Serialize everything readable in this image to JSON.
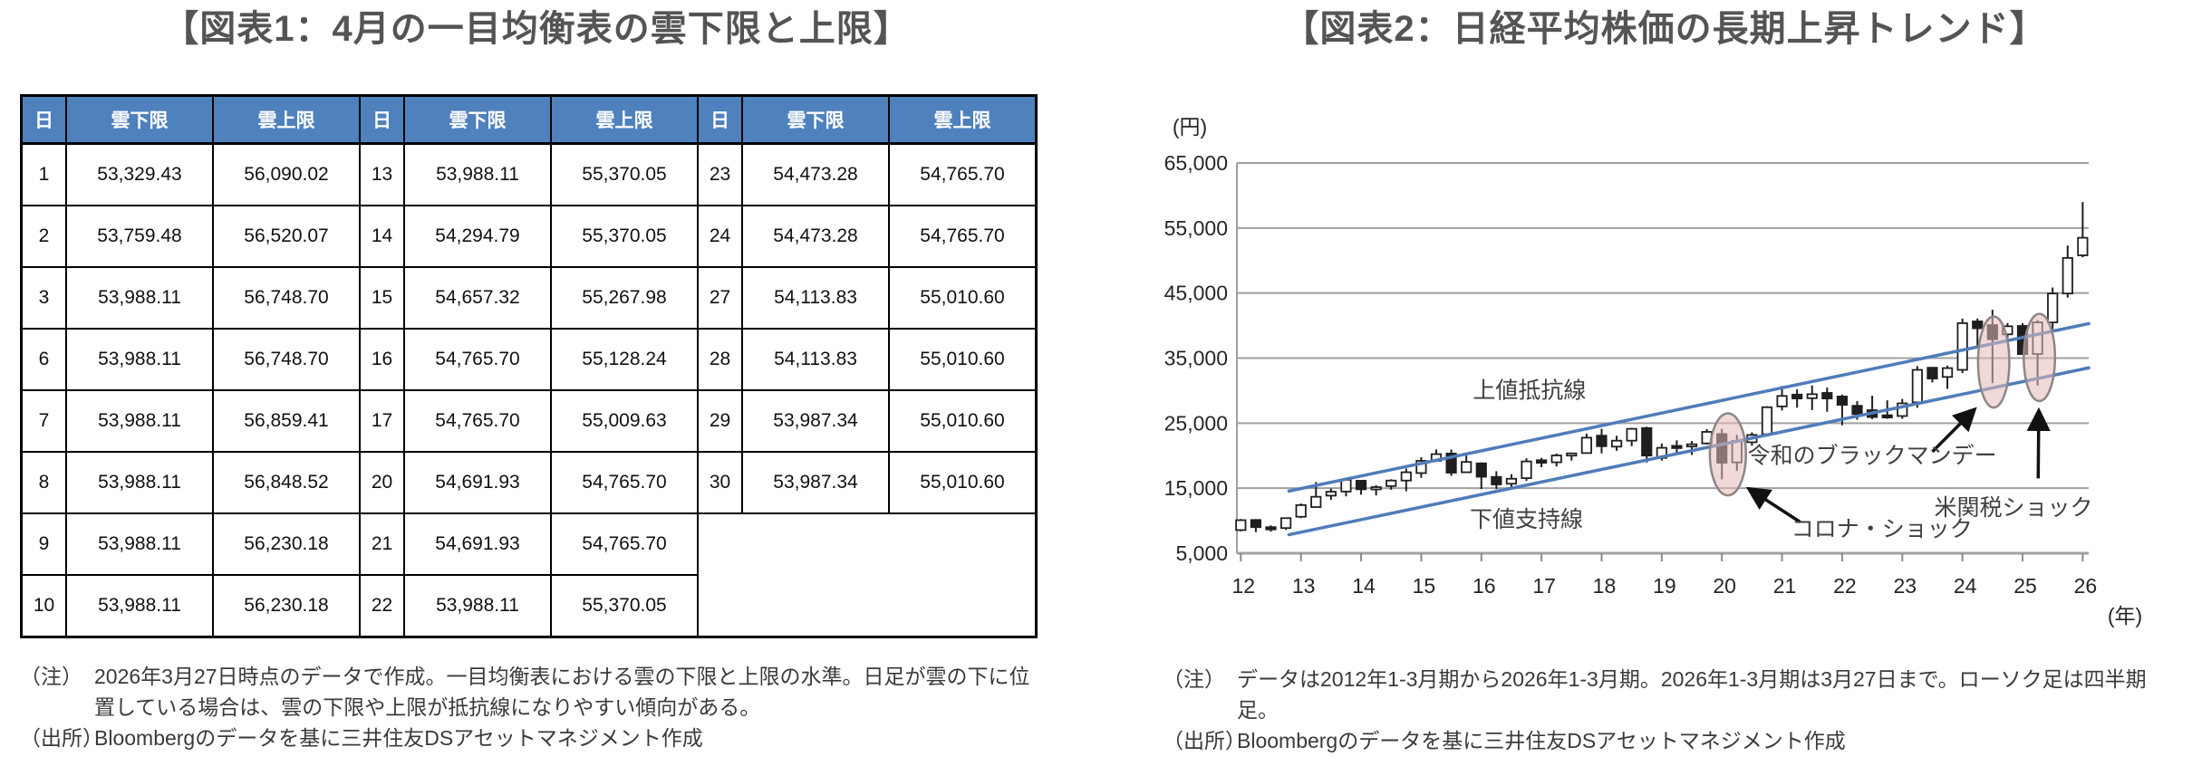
{
  "figure1": {
    "title": "【図表1：4月の一目均衡表の雲下限と上限】",
    "table": {
      "header": [
        "日",
        "雲下限",
        "雲上限",
        "日",
        "雲下限",
        "雲上限",
        "日",
        "雲下限",
        "雲上限"
      ],
      "rows": [
        [
          "1",
          "53,329.43",
          "56,090.02",
          "13",
          "53,988.11",
          "55,370.05",
          "23",
          "54,473.28",
          "54,765.70"
        ],
        [
          "2",
          "53,759.48",
          "56,520.07",
          "14",
          "54,294.79",
          "55,370.05",
          "24",
          "54,473.28",
          "54,765.70"
        ],
        [
          "3",
          "53,988.11",
          "56,748.70",
          "15",
          "54,657.32",
          "55,267.98",
          "27",
          "54,113.83",
          "55,010.60"
        ],
        [
          "6",
          "53,988.11",
          "56,748.70",
          "16",
          "54,765.70",
          "55,128.24",
          "28",
          "54,113.83",
          "55,010.60"
        ],
        [
          "7",
          "53,988.11",
          "56,859.41",
          "17",
          "54,765.70",
          "55,009.63",
          "29",
          "53,987.34",
          "55,010.60"
        ],
        [
          "8",
          "53,988.11",
          "56,848.52",
          "20",
          "54,691.93",
          "54,765.70",
          "30",
          "53,987.34",
          "55,010.60"
        ],
        [
          "9",
          "53,988.11",
          "56,230.18",
          "21",
          "54,691.93",
          "54,765.70",
          "",
          "",
          ""
        ],
        [
          "10",
          "53,988.11",
          "56,230.18",
          "22",
          "53,988.11",
          "55,370.05",
          "",
          "",
          ""
        ]
      ]
    },
    "notes": {
      "note_label": "（注）",
      "note_text": "2026年3月27日時点のデータで作成。一目均衡表における雲の下限と上限の水準。日足が雲の下に位置している場合は、雲の下限や上限が抵抗線になりやすい傾向がある。",
      "source_label": "（出所）",
      "source_text": "Bloombergのデータを基に三井住友DSアセットマネジメント作成"
    }
  },
  "figure2": {
    "title": "【図表2：日経平均株価の長期上昇トレンド】",
    "notes": {
      "note_label": "（注）",
      "note_text": "データは2012年1-3月期から2026年1-3月期。2026年1-3月期は3月27日まで。ローソク足は四半期足。",
      "source_label": "（出所）",
      "source_text": "Bloombergのデータを基に三井住友DSアセットマネジメント作成"
    }
  },
  "chart_data": {
    "type": "candlestick",
    "title": "日経平均株価の長期上昇トレンド",
    "period": "quarterly",
    "y_axis_unit": "(円)",
    "x_axis_unit": "(年)",
    "ylim": [
      5000,
      65000
    ],
    "y_tick_step": 10000,
    "xlim": [
      2011.935,
      2026.1
    ],
    "x_tick_year_start": 2012,
    "x_tick_labels": [
      "12",
      "13",
      "14",
      "15",
      "16",
      "17",
      "18",
      "19",
      "20",
      "21",
      "22",
      "23",
      "24",
      "25",
      "26"
    ],
    "grid": true,
    "colors": {
      "trend_line": "#4f7cba",
      "up_candle": "#ffffff",
      "down_candle": "#1f1f1f",
      "candle_stroke": "#1f1f1f",
      "highlight_fill": "#e4b9b8",
      "highlight_stroke": "#8f8686",
      "grid": "#a0a0a0",
      "axis": "#8a8a8a",
      "text": "#262626",
      "annotation": "#404040",
      "arrow": "#111111"
    },
    "ohlc": [
      [
        2012,
        1,
        8560,
        10255,
        8360,
        10084
      ],
      [
        2012,
        2,
        10110,
        10255,
        8240,
        9007
      ],
      [
        2012,
        3,
        9007,
        9288,
        8328,
        8870
      ],
      [
        2012,
        4,
        8870,
        10433,
        8596,
        10395
      ],
      [
        2013,
        1,
        10604,
        12650,
        10398,
        12398
      ],
      [
        2013,
        2,
        12100,
        15943,
        12100,
        13677
      ],
      [
        2013,
        3,
        13852,
        14953,
        13188,
        14456
      ],
      [
        2013,
        4,
        14484,
        16320,
        13748,
        16291
      ],
      [
        2014,
        1,
        16147,
        16164,
        13995,
        14828
      ],
      [
        2014,
        2,
        14841,
        15442,
        13885,
        15162
      ],
      [
        2014,
        3,
        15326,
        16374,
        14753,
        16174
      ],
      [
        2014,
        4,
        16173,
        18030,
        14529,
        17451
      ],
      [
        2015,
        1,
        17325,
        19778,
        16592,
        19207
      ],
      [
        2015,
        2,
        19207,
        20952,
        19034,
        20236
      ],
      [
        2015,
        3,
        20329,
        20946,
        16901,
        17388
      ],
      [
        2015,
        4,
        17449,
        20012,
        17380,
        19034
      ],
      [
        2016,
        1,
        18818,
        18951,
        14865,
        16759
      ],
      [
        2016,
        2,
        16729,
        17613,
        14864,
        15576
      ],
      [
        2016,
        3,
        15682,
        17156,
        14955,
        16450
      ],
      [
        2016,
        4,
        16544,
        19592,
        16111,
        19114
      ],
      [
        2017,
        1,
        19298,
        19668,
        18224,
        18909
      ],
      [
        2017,
        2,
        18983,
        20318,
        18335,
        20033
      ],
      [
        2017,
        3,
        20055,
        20481,
        19240,
        20356
      ],
      [
        2017,
        4,
        20400,
        23382,
        20318,
        22765
      ],
      [
        2018,
        1,
        23074,
        24129,
        20347,
        21454
      ],
      [
        2018,
        2,
        21388,
        23050,
        20751,
        22305
      ],
      [
        2018,
        3,
        22304,
        24286,
        21462,
        24120
      ],
      [
        2018,
        4,
        24245,
        24448,
        18948,
        20015
      ],
      [
        2019,
        1,
        19655,
        21860,
        19241,
        21206
      ],
      [
        2019,
        2,
        21509,
        22362,
        20289,
        21276
      ],
      [
        2019,
        3,
        21729,
        22255,
        20110,
        21756
      ],
      [
        2019,
        4,
        21885,
        24091,
        21710,
        23657
      ],
      [
        2020,
        1,
        23320,
        24115,
        16358,
        18917
      ],
      [
        2020,
        2,
        18974,
        23178,
        17646,
        22288
      ],
      [
        2020,
        3,
        22062,
        23580,
        21530,
        23185
      ],
      [
        2020,
        4,
        23295,
        27602,
        22948,
        27444
      ],
      [
        2021,
        1,
        27575,
        30715,
        26954,
        29179
      ],
      [
        2021,
        2,
        29388,
        30208,
        27385,
        28792
      ],
      [
        2021,
        3,
        28836,
        30796,
        27013,
        29453
      ],
      [
        2021,
        4,
        29647,
        30467,
        26749,
        28792
      ],
      [
        2022,
        1,
        29098,
        29388,
        24681,
        27821
      ],
      [
        2022,
        2,
        27665,
        28389,
        25520,
        26393
      ],
      [
        2022,
        3,
        26993,
        29223,
        25621,
        25937
      ],
      [
        2022,
        4,
        26215,
        28502,
        25661,
        26095
      ],
      [
        2023,
        1,
        26094,
        28734,
        25662,
        28041
      ],
      [
        2023,
        2,
        28203,
        33772,
        27359,
        33189
      ],
      [
        2023,
        3,
        33517,
        33634,
        31250,
        31858
      ],
      [
        2023,
        4,
        32101,
        33853,
        30269,
        33464
      ],
      [
        2024,
        1,
        33193,
        41087,
        32693,
        40369
      ],
      [
        2024,
        2,
        40646,
        41088,
        36733,
        39583
      ],
      [
        2024,
        3,
        40074,
        42426,
        31156,
        37920
      ],
      [
        2024,
        4,
        38651,
        40398,
        37651,
        39895
      ],
      [
        2025,
        1,
        39945,
        40368,
        35613,
        35618
      ],
      [
        2025,
        2,
        35624,
        40852,
        30793,
        40487
      ],
      [
        2025,
        3,
        40487,
        45853,
        39434,
        44932
      ],
      [
        2025,
        4,
        44932,
        52300,
        44300,
        50400
      ],
      [
        2026,
        1,
        50800,
        59000,
        50500,
        53500
      ]
    ],
    "trendlines": [
      {
        "name": "上値抵抗線",
        "x1": 2012.8,
        "y1": 14550,
        "x2": 2026.1,
        "y2": 40300
      },
      {
        "name": "下値支持線",
        "x1": 2012.8,
        "y1": 7850,
        "x2": 2026.1,
        "y2": 33500
      }
    ],
    "ellipses": [
      {
        "label": "コロナ・ショック",
        "x": 2020.1,
        "y": 20200,
        "rx_years": 0.3,
        "ry_value": 6300
      },
      {
        "label": "令和のブラックマンデー",
        "x": 2024.52,
        "y": 34400,
        "rx_years": 0.26,
        "ry_value": 7000
      },
      {
        "label": "米関税ショック",
        "x": 2025.28,
        "y": 35100,
        "rx_years": 0.26,
        "ry_value": 6700
      }
    ],
    "arrows": [
      {
        "x1": 2021.3,
        "y1": 9800,
        "x2": 2020.45,
        "y2": 14900
      },
      {
        "x1": 2023.5,
        "y1": 20600,
        "x2": 2024.2,
        "y2": 27100
      },
      {
        "x1": 2025.26,
        "y1": 16500,
        "x2": 2025.27,
        "y2": 26900
      }
    ],
    "labels": [
      {
        "text": "上値抵抗線",
        "x": 2016.8,
        "y": 30100
      },
      {
        "text": "下値支持線",
        "x": 2016.75,
        "y": 10300
      },
      {
        "text": "コロナ・ショック",
        "x": 2022.66,
        "y": 8800
      },
      {
        "text": "令和のブラックマンデー",
        "x": 2022.5,
        "y": 20100
      },
      {
        "text": "米関税ショック",
        "x": 2024.85,
        "y": 12100
      }
    ]
  }
}
